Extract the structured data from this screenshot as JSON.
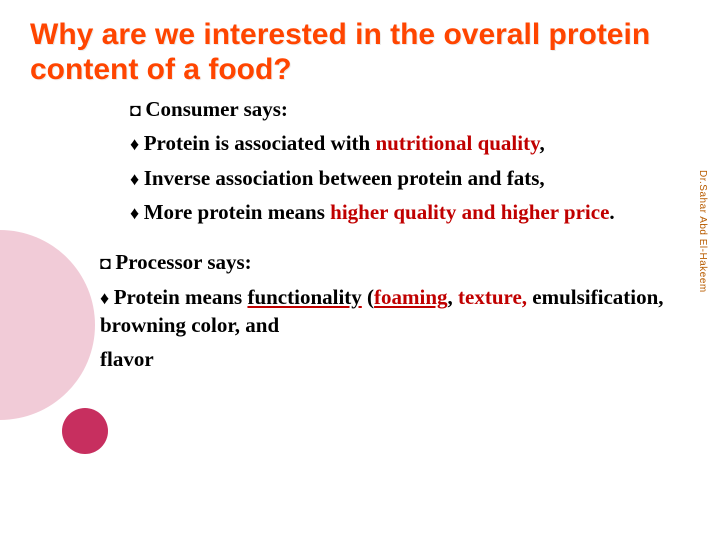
{
  "title": "Why are we interested in the overall protein content of a food?",
  "consumer": {
    "heading": "Consumer says:",
    "items": [
      {
        "pre": "Protein is associated with ",
        "hl": "nutritional quality",
        "post": ","
      },
      {
        "pre": "Inverse association between protein and fats,",
        "hl": "",
        "post": ""
      },
      {
        "pre": "More protein means ",
        "hl": "higher quality and higher price",
        "post": "."
      }
    ]
  },
  "processor": {
    "heading": "Processor says:",
    "line_pre": "Protein means ",
    "func_word": "functionality",
    "paren_open": " (",
    "foaming": "foaming",
    "sep1": ", ",
    "texture": "texture",
    "sep2": ", ",
    "rest": "emulsification, browning color, and",
    "last": "flavor"
  },
  "side_label": "Dr.Sahar Abd El-Hakeem",
  "colors": {
    "title": "#ff4500",
    "highlight": "#c00000",
    "circle": "#c72f5f",
    "side": "#b85c00"
  }
}
